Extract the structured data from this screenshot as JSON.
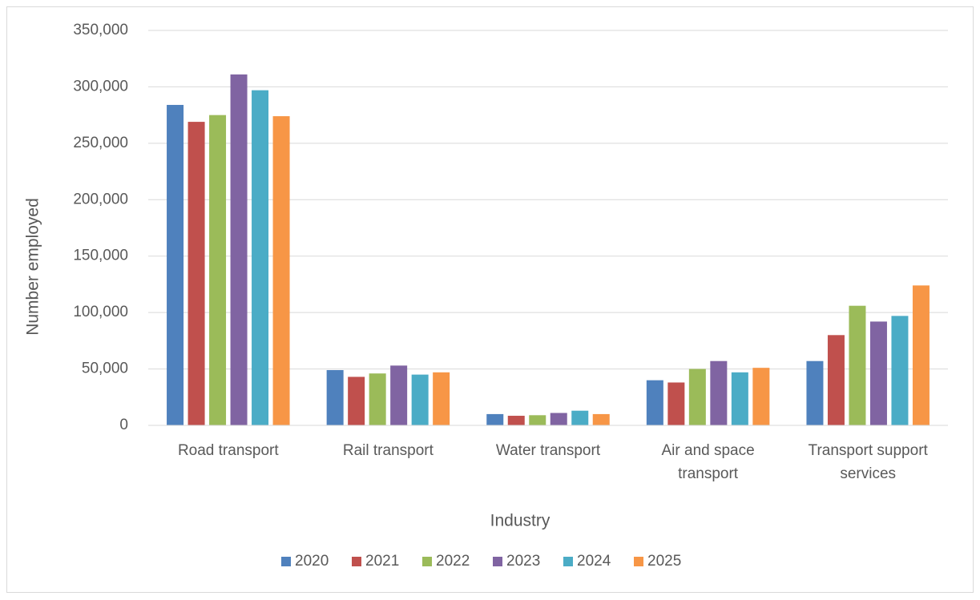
{
  "chart_data": {
    "type": "bar",
    "y_label": "Number employed",
    "x_label": "Industry",
    "categories": [
      "Road transport",
      "Rail transport",
      "Water transport",
      "Air and space transport",
      "Transport support services"
    ],
    "series": [
      {
        "name": "2020",
        "color": "#4f81bd",
        "values": [
          284000,
          49000,
          10000,
          40000,
          57000
        ]
      },
      {
        "name": "2021",
        "color": "#c0504d",
        "values": [
          269000,
          43000,
          8500,
          38000,
          80000
        ]
      },
      {
        "name": "2022",
        "color": "#9bbb59",
        "values": [
          275000,
          46000,
          9000,
          50000,
          106000
        ]
      },
      {
        "name": "2023",
        "color": "#8064a2",
        "values": [
          311000,
          53000,
          11000,
          57000,
          92000
        ]
      },
      {
        "name": "2024",
        "color": "#4bacc6",
        "values": [
          297000,
          45000,
          13000,
          47000,
          97000
        ]
      },
      {
        "name": "2025",
        "color": "#f79646",
        "values": [
          274000,
          47000,
          10000,
          51000,
          124000
        ]
      }
    ],
    "ylim": [
      0,
      350000
    ],
    "yticks": [
      0,
      {
        "value": 50000,
        "label": "50,000"
      },
      {
        "value": 100000,
        "label": "100,000"
      },
      {
        "value": 150000,
        "label": "150,000"
      },
      {
        "value": 200000,
        "label": "200,000"
      },
      {
        "value": 250000,
        "label": "250,000"
      },
      {
        "value": 300000,
        "label": "300,000"
      },
      {
        "value": 350000,
        "label": "350,000"
      }
    ],
    "grid": true,
    "legend": "bottom"
  }
}
